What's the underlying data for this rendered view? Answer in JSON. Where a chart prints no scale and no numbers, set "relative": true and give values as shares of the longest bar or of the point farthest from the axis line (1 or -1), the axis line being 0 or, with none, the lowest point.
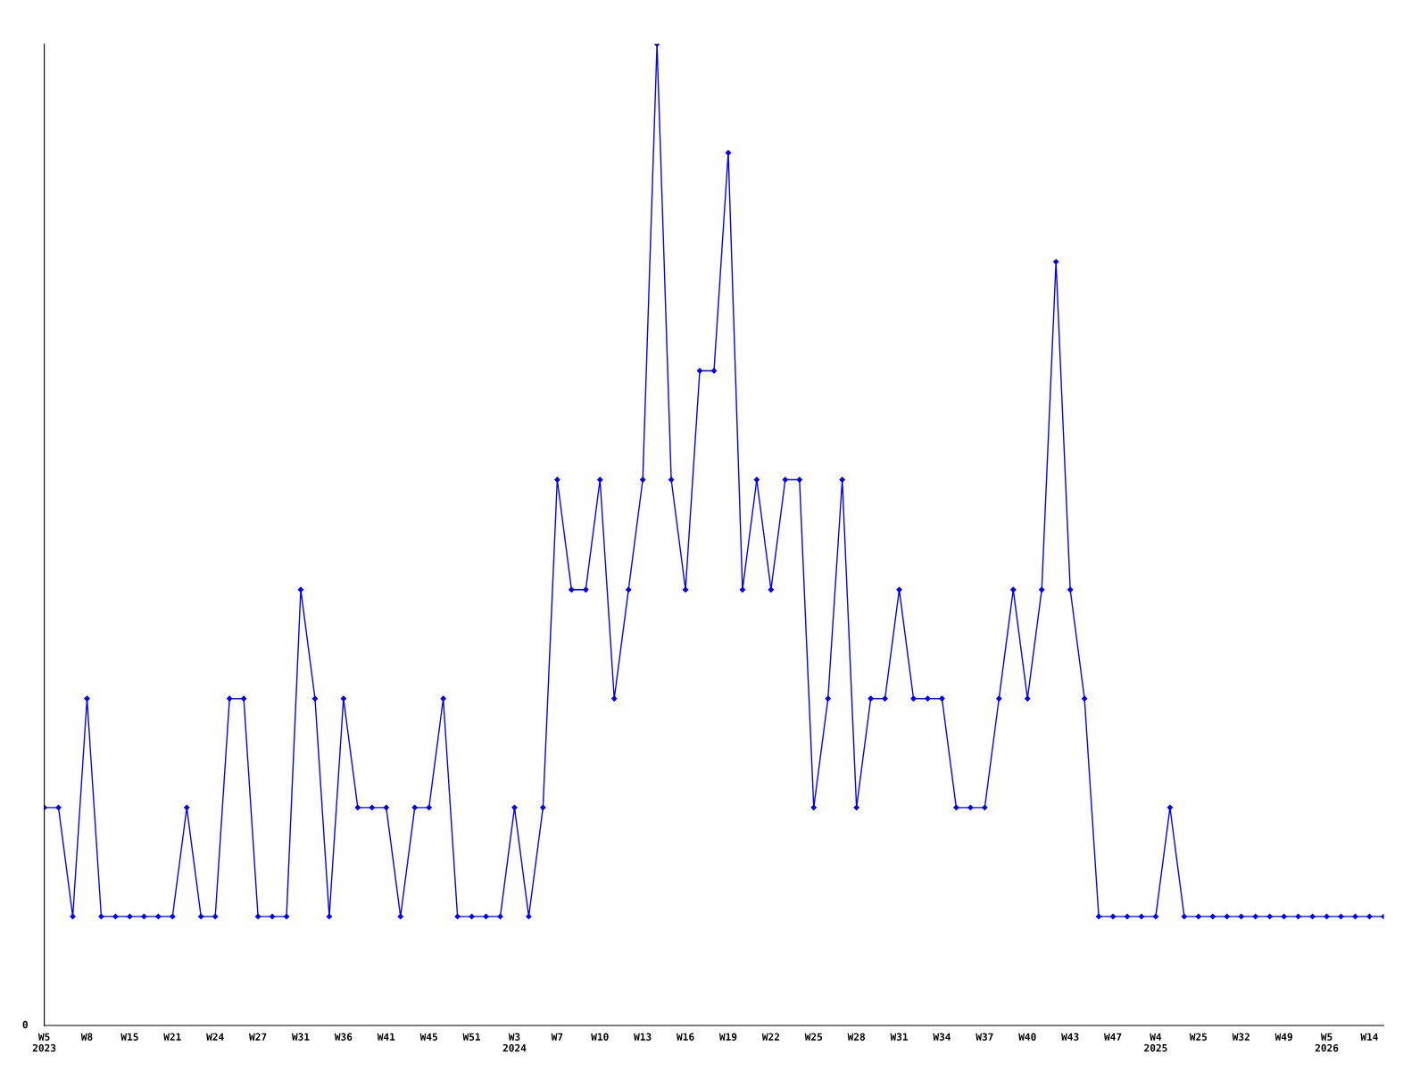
{
  "chart_data": {
    "type": "line",
    "relative": true,
    "marker": "diamond",
    "line_style": "solid",
    "grid": false,
    "legend": false,
    "annotations": [
      "0"
    ],
    "categories": [
      "W5\n2023",
      null,
      null,
      "W8",
      null,
      null,
      "W15",
      null,
      null,
      "W21",
      null,
      null,
      "W24",
      null,
      null,
      "W27",
      null,
      null,
      "W31",
      null,
      null,
      "W36",
      null,
      null,
      "W41",
      null,
      null,
      "W45",
      null,
      null,
      "W51",
      null,
      null,
      "W3\n2024",
      null,
      null,
      "W7",
      null,
      null,
      "W10",
      null,
      null,
      "W13",
      null,
      null,
      "W16",
      null,
      null,
      "W19",
      null,
      null,
      "W22",
      null,
      null,
      "W25",
      null,
      null,
      "W28",
      null,
      null,
      "W31",
      null,
      null,
      "W34",
      null,
      null,
      "W37",
      null,
      null,
      "W40",
      null,
      null,
      "W43",
      null,
      null,
      "W47",
      null,
      null,
      "W4\n2025",
      null,
      null,
      "W25",
      null,
      null,
      "W32",
      null,
      null,
      "W49",
      null,
      null,
      "W5\n2026",
      null,
      null,
      "W14",
      null
    ],
    "series": [
      {
        "color": "#0000ff",
        "values": [
          0.222,
          0.222,
          0.111,
          0.333,
          0.111,
          0.111,
          0.111,
          0.111,
          0.111,
          0.111,
          0.222,
          0.111,
          0.111,
          0.333,
          0.333,
          0.111,
          0.111,
          0.111,
          0.444,
          0.333,
          0.111,
          0.333,
          0.222,
          0.222,
          0.222,
          0.111,
          0.222,
          0.222,
          0.333,
          0.111,
          0.111,
          0.111,
          0.111,
          0.222,
          0.111,
          0.222,
          0.556,
          0.444,
          0.444,
          0.556,
          0.333,
          0.444,
          0.556,
          1,
          0.556,
          0.444,
          0.667,
          0.667,
          0.889,
          0.444,
          0.556,
          0.444,
          0.556,
          0.556,
          0.222,
          0.333,
          0.556,
          0.222,
          0.333,
          0.333,
          0.444,
          0.333,
          0.333,
          0.333,
          0.222,
          0.222,
          0.222,
          0.333,
          0.444,
          0.333,
          0.444,
          0.778,
          0.444,
          0.333,
          0.111,
          0.111,
          0.111,
          0.111,
          0.111,
          0.222,
          0.111,
          0.111,
          0.111,
          0.111,
          0.111,
          0.111,
          0.111,
          0.111,
          0.111,
          0.111,
          0.111,
          0.111,
          0.111,
          0.111,
          0.111
        ]
      }
    ]
  }
}
